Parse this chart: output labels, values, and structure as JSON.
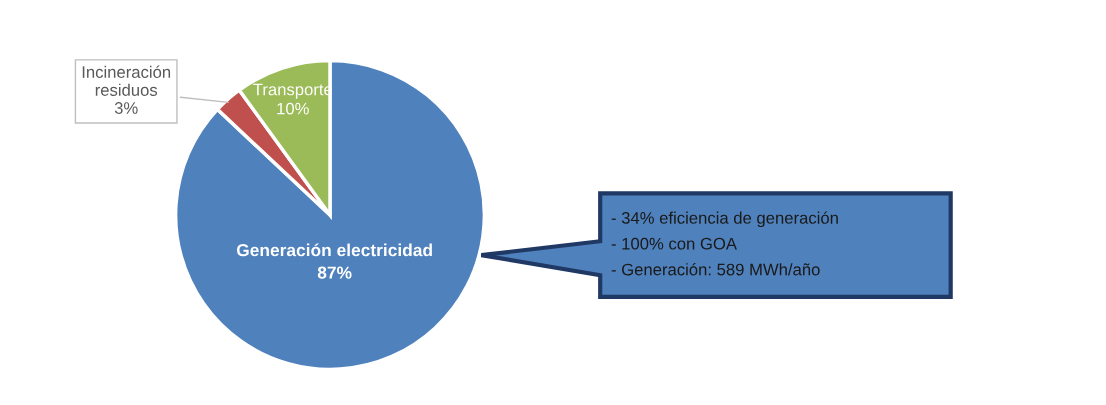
{
  "chart_data": {
    "type": "pie",
    "categories": [
      "Generación electricidad",
      "Incineración residuos",
      "Transporte"
    ],
    "values": [
      87,
      3,
      10
    ],
    "colors": [
      "#4f81bd",
      "#c0504d",
      "#9bbb59"
    ],
    "value_labels": [
      "87%",
      "3%",
      "10%"
    ],
    "annotations": [
      "- 34% eficiencia de generación",
      "- 100% con GOA",
      "- Generación: 589 MWh/año"
    ]
  }
}
